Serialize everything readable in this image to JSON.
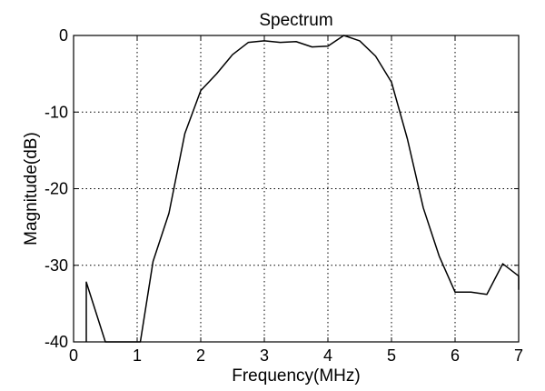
{
  "chart_data": {
    "type": "line",
    "title": "Spectrum",
    "xlabel": "Frequency(MHz)",
    "ylabel": "Magnitude(dB)",
    "xlim": [
      0,
      7
    ],
    "ylim": [
      -40,
      0
    ],
    "xticks": [
      0,
      1,
      2,
      3,
      4,
      5,
      6,
      7
    ],
    "yticks": [
      0,
      -10,
      -20,
      -30,
      -40
    ],
    "xtick_labels": [
      "0",
      "1",
      "2",
      "3",
      "4",
      "5",
      "6",
      "7"
    ],
    "ytick_labels": [
      "0",
      "-10",
      "-20",
      "-30",
      "-40"
    ],
    "grid": true,
    "series": [
      {
        "x": [
          0.2,
          0.2,
          0.5,
          1.0,
          1.05,
          1.25,
          1.5,
          1.75,
          2.0,
          2.25,
          2.5,
          2.75,
          3.0,
          3.25,
          3.5,
          3.75,
          4.0,
          4.25,
          4.5,
          4.75,
          5.0,
          5.25,
          5.5,
          5.75,
          6.0,
          6.25,
          6.5,
          6.75,
          7.0,
          7.0
        ],
        "y": [
          -40,
          -32.2,
          -40,
          -40,
          -40,
          -29.5,
          -23.2,
          -12.8,
          -7.2,
          -5.0,
          -2.5,
          -0.9,
          -0.7,
          -0.9,
          -0.8,
          -1.5,
          -1.4,
          0,
          -0.7,
          -2.7,
          -6.1,
          -13.5,
          -22.5,
          -28.8,
          -33.5,
          -33.5,
          -33.8,
          -29.8,
          -31.4,
          -33.2
        ]
      }
    ]
  }
}
